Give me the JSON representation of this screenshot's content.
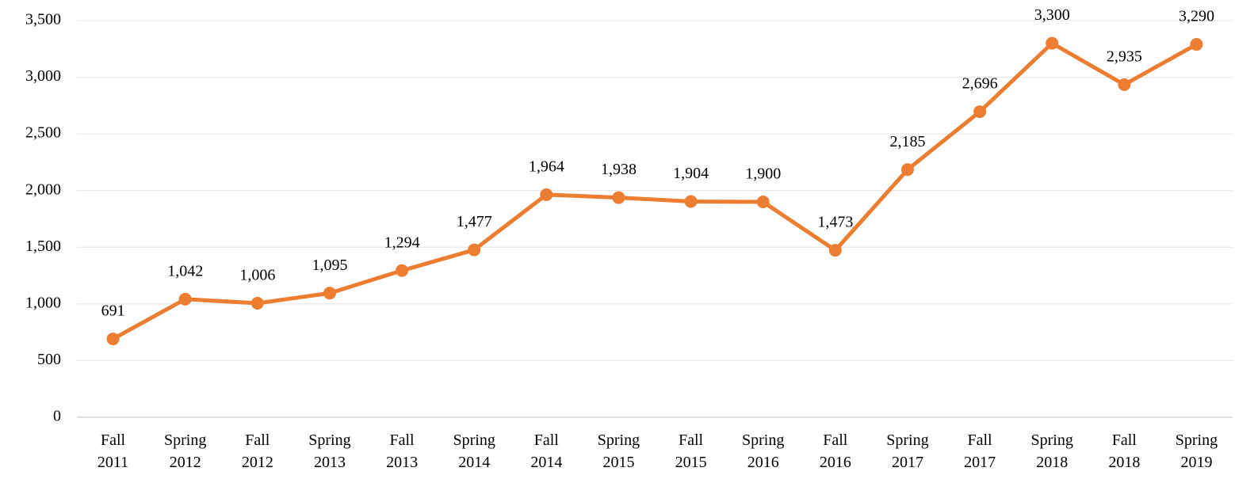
{
  "chart_data": {
    "type": "line",
    "categories": [
      "Fall 2011",
      "Spring 2012",
      "Fall 2012",
      "Spring 2013",
      "Fall 2013",
      "Spring 2014",
      "Fall 2014",
      "Spring 2015",
      "Fall 2015",
      "Spring 2016",
      "Fall 2016",
      "Spring 2017",
      "Fall 2017",
      "Spring 2018",
      "Fall 2018",
      "Spring 2019"
    ],
    "values": [
      691,
      1042,
      1006,
      1095,
      1294,
      1477,
      1964,
      1938,
      1904,
      1900,
      1473,
      2185,
      2696,
      3300,
      2935,
      3290
    ],
    "value_labels": [
      "691",
      "1,042",
      "1,006",
      "1,095",
      "1,294",
      "1,477",
      "1,964",
      "1,938",
      "1,904",
      "1,900",
      "1,473",
      "2,185",
      "2,696",
      "3,300",
      "2,935",
      "3,290"
    ],
    "color": "#ed7d31",
    "ylim": [
      0,
      3500
    ],
    "yticks": [
      0,
      500,
      {
        "value": 1000,
        "label": "1,000"
      },
      {
        "value": 1500,
        "label": "1,500"
      },
      {
        "value": 2000,
        "label": "2,000"
      },
      {
        "value": 2500,
        "label": "2,500"
      },
      {
        "value": 3000,
        "label": "3,000"
      },
      {
        "value": 3500,
        "label": "3,500"
      }
    ],
    "grid": true
  }
}
